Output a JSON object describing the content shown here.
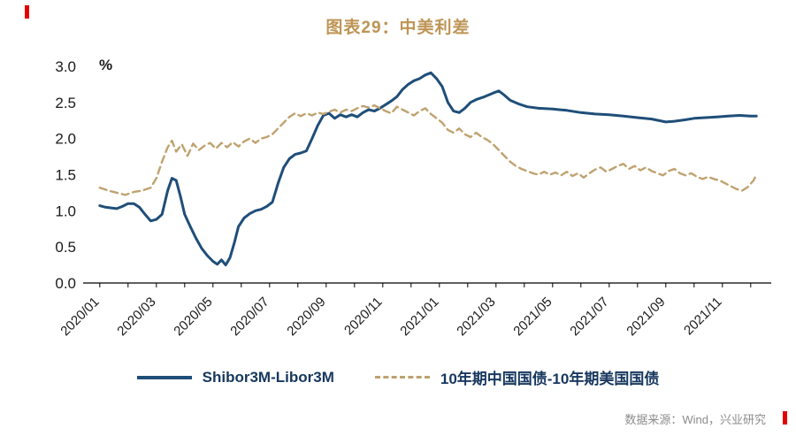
{
  "title": "图表29：中美利差",
  "source": "数据来源：Wind，兴业研究",
  "colors": {
    "accent_red": "#e60000",
    "title_tan": "#be9455",
    "series_blue": "#1f4e79",
    "series_tan": "#bfa26f"
  },
  "legend": [
    {
      "label": "Shibor3M-Libor3M",
      "style": "solid"
    },
    {
      "label": "10年期中国国债-10年期美国国债",
      "style": "dashed"
    }
  ],
  "chart_data": {
    "type": "line",
    "title": "图表29：中美利差",
    "xlabel": "",
    "ylabel": "%",
    "ylim": [
      0,
      3
    ],
    "xlim": [
      -0.4,
      23.6
    ],
    "x_unit": "months_from_2020_01",
    "grid": false,
    "legend_position": "bottom",
    "y_ticks": [
      {
        "value": 0,
        "label": "0.0"
      },
      {
        "value": 0.5,
        "label": "0.5"
      },
      {
        "value": 1,
        "label": "1.0"
      },
      {
        "value": 1.5,
        "label": "1.5"
      },
      {
        "value": 2,
        "label": "2.0"
      },
      {
        "value": 2.5,
        "label": "2.5"
      },
      {
        "value": 3,
        "label": "3.0"
      }
    ],
    "x_tick_labels": [
      {
        "x": 0,
        "label": "2020/01"
      },
      {
        "x": 2,
        "label": "2020/03"
      },
      {
        "x": 4,
        "label": "2020/05"
      },
      {
        "x": 6,
        "label": "2020/07"
      },
      {
        "x": 8,
        "label": "2020/09"
      },
      {
        "x": 10,
        "label": "2020/11"
      },
      {
        "x": 12,
        "label": "2021/01"
      },
      {
        "x": 14,
        "label": "2021/03"
      },
      {
        "x": 16,
        "label": "2021/05"
      },
      {
        "x": 18,
        "label": "2021/07"
      },
      {
        "x": 20,
        "label": "2021/09"
      },
      {
        "x": 22,
        "label": "2021/11"
      }
    ],
    "series": [
      {
        "name": "Shibor3M-Libor3M",
        "color": "#1f4e79",
        "style": "solid",
        "points": [
          [
            0,
            1.07
          ],
          [
            0.2,
            1.05
          ],
          [
            0.4,
            1.04
          ],
          [
            0.6,
            1.03
          ],
          [
            0.8,
            1.06
          ],
          [
            1,
            1.1
          ],
          [
            1.2,
            1.1
          ],
          [
            1.4,
            1.05
          ],
          [
            1.6,
            0.95
          ],
          [
            1.8,
            0.86
          ],
          [
            2,
            0.88
          ],
          [
            2.2,
            0.95
          ],
          [
            2.4,
            1.28
          ],
          [
            2.55,
            1.45
          ],
          [
            2.7,
            1.42
          ],
          [
            2.85,
            1.2
          ],
          [
            3,
            0.95
          ],
          [
            3.2,
            0.78
          ],
          [
            3.4,
            0.62
          ],
          [
            3.6,
            0.48
          ],
          [
            3.8,
            0.38
          ],
          [
            4,
            0.3
          ],
          [
            4.15,
            0.26
          ],
          [
            4.3,
            0.32
          ],
          [
            4.45,
            0.25
          ],
          [
            4.6,
            0.35
          ],
          [
            4.75,
            0.55
          ],
          [
            4.9,
            0.78
          ],
          [
            5.1,
            0.9
          ],
          [
            5.3,
            0.96
          ],
          [
            5.5,
            1
          ],
          [
            5.7,
            1.02
          ],
          [
            5.9,
            1.06
          ],
          [
            6.1,
            1.12
          ],
          [
            6.3,
            1.38
          ],
          [
            6.5,
            1.6
          ],
          [
            6.7,
            1.72
          ],
          [
            6.9,
            1.78
          ],
          [
            7.1,
            1.8
          ],
          [
            7.3,
            1.83
          ],
          [
            7.5,
            2
          ],
          [
            7.7,
            2.18
          ],
          [
            7.9,
            2.32
          ],
          [
            8.1,
            2.35
          ],
          [
            8.3,
            2.28
          ],
          [
            8.5,
            2.33
          ],
          [
            8.7,
            2.3
          ],
          [
            8.9,
            2.33
          ],
          [
            9.1,
            2.3
          ],
          [
            9.3,
            2.36
          ],
          [
            9.5,
            2.4
          ],
          [
            9.7,
            2.38
          ],
          [
            9.9,
            2.42
          ],
          [
            10.1,
            2.47
          ],
          [
            10.3,
            2.52
          ],
          [
            10.5,
            2.58
          ],
          [
            10.7,
            2.68
          ],
          [
            10.9,
            2.75
          ],
          [
            11.1,
            2.8
          ],
          [
            11.3,
            2.83
          ],
          [
            11.5,
            2.88
          ],
          [
            11.7,
            2.91
          ],
          [
            11.9,
            2.83
          ],
          [
            12.1,
            2.72
          ],
          [
            12.3,
            2.5
          ],
          [
            12.5,
            2.38
          ],
          [
            12.7,
            2.36
          ],
          [
            12.9,
            2.42
          ],
          [
            13.1,
            2.5
          ],
          [
            13.3,
            2.54
          ],
          [
            13.6,
            2.58
          ],
          [
            13.9,
            2.63
          ],
          [
            14.1,
            2.66
          ],
          [
            14.3,
            2.6
          ],
          [
            14.5,
            2.53
          ],
          [
            14.8,
            2.48
          ],
          [
            15.1,
            2.44
          ],
          [
            15.5,
            2.42
          ],
          [
            16,
            2.41
          ],
          [
            16.5,
            2.39
          ],
          [
            17,
            2.36
          ],
          [
            17.5,
            2.34
          ],
          [
            18,
            2.33
          ],
          [
            18.5,
            2.31
          ],
          [
            19,
            2.29
          ],
          [
            19.5,
            2.27
          ],
          [
            20,
            2.23
          ],
          [
            20.3,
            2.24
          ],
          [
            20.7,
            2.26
          ],
          [
            21,
            2.28
          ],
          [
            21.4,
            2.29
          ],
          [
            21.8,
            2.3
          ],
          [
            22.2,
            2.31
          ],
          [
            22.6,
            2.32
          ],
          [
            23,
            2.31
          ],
          [
            23.2,
            2.31
          ]
        ]
      },
      {
        "name": "10年期中国国债-10年期美国国债",
        "color": "#bfa26f",
        "style": "dashed",
        "points": [
          [
            0,
            1.32
          ],
          [
            0.3,
            1.28
          ],
          [
            0.6,
            1.25
          ],
          [
            0.9,
            1.22
          ],
          [
            1.2,
            1.26
          ],
          [
            1.5,
            1.28
          ],
          [
            1.8,
            1.32
          ],
          [
            2,
            1.45
          ],
          [
            2.2,
            1.68
          ],
          [
            2.4,
            1.88
          ],
          [
            2.55,
            1.97
          ],
          [
            2.7,
            1.82
          ],
          [
            2.9,
            1.92
          ],
          [
            3.1,
            1.76
          ],
          [
            3.3,
            1.93
          ],
          [
            3.5,
            1.84
          ],
          [
            3.7,
            1.9
          ],
          [
            3.9,
            1.94
          ],
          [
            4.1,
            1.86
          ],
          [
            4.3,
            1.94
          ],
          [
            4.5,
            1.88
          ],
          [
            4.7,
            1.95
          ],
          [
            4.9,
            1.89
          ],
          [
            5.1,
            1.96
          ],
          [
            5.3,
            2
          ],
          [
            5.5,
            1.94
          ],
          [
            5.7,
            2
          ],
          [
            5.9,
            2.02
          ],
          [
            6.1,
            2.06
          ],
          [
            6.3,
            2.14
          ],
          [
            6.5,
            2.22
          ],
          [
            6.7,
            2.3
          ],
          [
            6.9,
            2.35
          ],
          [
            7.1,
            2.31
          ],
          [
            7.3,
            2.35
          ],
          [
            7.5,
            2.32
          ],
          [
            7.7,
            2.36
          ],
          [
            7.9,
            2.34
          ],
          [
            8.1,
            2.37
          ],
          [
            8.3,
            2.4
          ],
          [
            8.5,
            2.36
          ],
          [
            8.7,
            2.4
          ],
          [
            8.9,
            2.38
          ],
          [
            9.1,
            2.42
          ],
          [
            9.3,
            2.45
          ],
          [
            9.5,
            2.43
          ],
          [
            9.7,
            2.46
          ],
          [
            9.9,
            2.42
          ],
          [
            10.1,
            2.38
          ],
          [
            10.3,
            2.35
          ],
          [
            10.5,
            2.44
          ],
          [
            10.7,
            2.4
          ],
          [
            10.9,
            2.36
          ],
          [
            11.1,
            2.32
          ],
          [
            11.3,
            2.38
          ],
          [
            11.5,
            2.42
          ],
          [
            11.7,
            2.34
          ],
          [
            11.9,
            2.28
          ],
          [
            12.1,
            2.22
          ],
          [
            12.3,
            2.12
          ],
          [
            12.5,
            2.08
          ],
          [
            12.7,
            2.14
          ],
          [
            12.9,
            2.06
          ],
          [
            13.1,
            2.02
          ],
          [
            13.3,
            2.08
          ],
          [
            13.5,
            2.02
          ],
          [
            13.7,
            1.98
          ],
          [
            13.9,
            1.92
          ],
          [
            14.1,
            1.84
          ],
          [
            14.3,
            1.76
          ],
          [
            14.5,
            1.68
          ],
          [
            14.7,
            1.62
          ],
          [
            14.9,
            1.58
          ],
          [
            15.1,
            1.55
          ],
          [
            15.3,
            1.52
          ],
          [
            15.5,
            1.5
          ],
          [
            15.7,
            1.54
          ],
          [
            15.9,
            1.5
          ],
          [
            16.1,
            1.53
          ],
          [
            16.3,
            1.49
          ],
          [
            16.5,
            1.54
          ],
          [
            16.7,
            1.48
          ],
          [
            16.9,
            1.52
          ],
          [
            17.1,
            1.46
          ],
          [
            17.3,
            1.52
          ],
          [
            17.5,
            1.57
          ],
          [
            17.7,
            1.6
          ],
          [
            17.9,
            1.54
          ],
          [
            18.1,
            1.58
          ],
          [
            18.3,
            1.62
          ],
          [
            18.5,
            1.65
          ],
          [
            18.7,
            1.58
          ],
          [
            18.9,
            1.62
          ],
          [
            19.1,
            1.56
          ],
          [
            19.3,
            1.6
          ],
          [
            19.5,
            1.55
          ],
          [
            19.7,
            1.52
          ],
          [
            19.9,
            1.49
          ],
          [
            20.1,
            1.55
          ],
          [
            20.3,
            1.58
          ],
          [
            20.5,
            1.52
          ],
          [
            20.7,
            1.49
          ],
          [
            20.9,
            1.52
          ],
          [
            21.1,
            1.47
          ],
          [
            21.3,
            1.44
          ],
          [
            21.5,
            1.47
          ],
          [
            21.7,
            1.44
          ],
          [
            21.9,
            1.42
          ],
          [
            22.1,
            1.38
          ],
          [
            22.3,
            1.34
          ],
          [
            22.5,
            1.3
          ],
          [
            22.7,
            1.28
          ],
          [
            22.9,
            1.33
          ],
          [
            23.1,
            1.42
          ],
          [
            23.2,
            1.5
          ]
        ]
      }
    ]
  }
}
